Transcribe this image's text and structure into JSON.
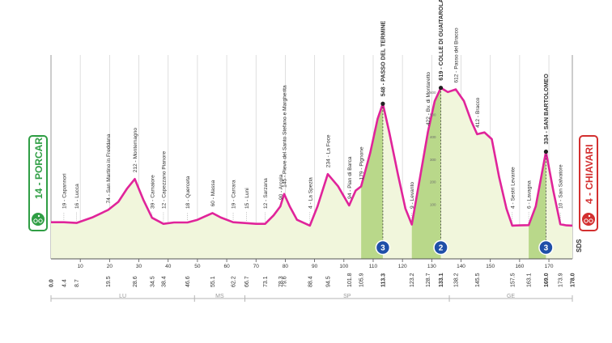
{
  "start": {
    "label": "14 - PORCARI"
  },
  "finish": {
    "label": "4 - CHIAVARI"
  },
  "sds": "SDS",
  "colors": {
    "profile_fill": "#f1f6dc",
    "climb_fill": "#b9d88a",
    "profile_line": "#e0249a",
    "start_green": "#2f9e44",
    "finish_red": "#d32f2f",
    "kom_blue": "#1f4fa8"
  },
  "km_ticks": [
    10,
    20,
    30,
    40,
    50,
    60,
    70,
    80,
    90,
    100,
    110,
    120,
    130,
    140,
    150,
    160,
    170
  ],
  "waypoints": [
    {
      "km": 0.0,
      "label": ""
    },
    {
      "km": 4.4,
      "label": "19 - Capannori"
    },
    {
      "km": 8.7,
      "label": "16 - Lucca"
    },
    {
      "km": 19.5,
      "label": "74 - San Martino in Freddana"
    },
    {
      "km": 28.6,
      "label": "212 - Montemagno"
    },
    {
      "km": 34.5,
      "label": "39 - Camaiore"
    },
    {
      "km": 38.4,
      "label": "12 - Capezzano Pianore"
    },
    {
      "km": 46.6,
      "label": "18 - Querceta"
    },
    {
      "km": 55.1,
      "label": "60 - Massa"
    },
    {
      "km": 62.2,
      "label": "19 - Carrara"
    },
    {
      "km": 66.7,
      "label": "15 - Luni"
    },
    {
      "km": 73.1,
      "label": "12 - Sarzana"
    },
    {
      "km": 78.3,
      "label": "90 - Arcola"
    },
    {
      "km": 79.6,
      "label": "145 - Pieve del Santo Stefano e Margherita"
    },
    {
      "km": 88.4,
      "label": "4 - La Spezia"
    },
    {
      "km": 94.5,
      "label": "234 - La Foce"
    },
    {
      "km": 101.8,
      "label": "94 - Pian di Barca"
    },
    {
      "km": 105.9,
      "label": "179 - Pignone"
    },
    {
      "km": 113.3,
      "label": "548 - PASSO DEL TERMINE"
    },
    {
      "km": 123.2,
      "label": "9 - Levanto"
    },
    {
      "km": 128.7,
      "label": "422 - Bv. di Montaretto"
    },
    {
      "km": 133.1,
      "label": "619 - COLLE DI GUAITAROLA"
    },
    {
      "km": 138.2,
      "label": "612 - Passo del Bracco"
    },
    {
      "km": 145.5,
      "label": "412 - Bracco"
    },
    {
      "km": 157.5,
      "label": "4 - Sestri Levante"
    },
    {
      "km": 163.1,
      "label": "6 - Lavagna"
    },
    {
      "km": 169.0,
      "label": "334 - SAN BARTOLOMEO"
    },
    {
      "km": 173.9,
      "label": "10 - San Salvatore"
    },
    {
      "km": 178.0,
      "label": ""
    }
  ],
  "elevation_axis_labels": [
    "100",
    "200",
    "300",
    "400",
    "500",
    "600"
  ],
  "profile": [
    [
      0,
      19
    ],
    [
      4.4,
      19
    ],
    [
      8.7,
      16
    ],
    [
      14,
      40
    ],
    [
      19.5,
      74
    ],
    [
      23,
      110
    ],
    [
      26,
      170
    ],
    [
      28.6,
      212
    ],
    [
      31.5,
      120
    ],
    [
      34.5,
      39
    ],
    [
      38.4,
      12
    ],
    [
      42,
      18
    ],
    [
      46.6,
      18
    ],
    [
      50,
      30
    ],
    [
      55.1,
      60
    ],
    [
      58,
      40
    ],
    [
      62.2,
      19
    ],
    [
      66.7,
      15
    ],
    [
      70,
      12
    ],
    [
      73.1,
      12
    ],
    [
      76,
      50
    ],
    [
      78.3,
      90
    ],
    [
      79.6,
      145
    ],
    [
      81.5,
      90
    ],
    [
      84,
      30
    ],
    [
      88.4,
      4
    ],
    [
      91,
      90
    ],
    [
      94.5,
      234
    ],
    [
      98,
      180
    ],
    [
      101.8,
      94
    ],
    [
      104,
      160
    ],
    [
      105.9,
      179
    ],
    [
      109,
      330
    ],
    [
      111.5,
      480
    ],
    [
      113.3,
      548
    ],
    [
      115.5,
      420
    ],
    [
      118.5,
      230
    ],
    [
      121,
      80
    ],
    [
      123.2,
      9
    ],
    [
      126,
      220
    ],
    [
      128.7,
      422
    ],
    [
      131,
      560
    ],
    [
      133.1,
      619
    ],
    [
      135.5,
      600
    ],
    [
      138.2,
      612
    ],
    [
      141,
      560
    ],
    [
      143.5,
      470
    ],
    [
      145.5,
      412
    ],
    [
      148,
      420
    ],
    [
      150.5,
      390
    ],
    [
      153,
      220
    ],
    [
      155.5,
      80
    ],
    [
      157.5,
      4
    ],
    [
      160,
      5
    ],
    [
      163.1,
      6
    ],
    [
      165.5,
      90
    ],
    [
      167.5,
      230
    ],
    [
      169.0,
      334
    ],
    [
      171.5,
      160
    ],
    [
      173.9,
      10
    ],
    [
      176,
      5
    ],
    [
      178,
      4
    ]
  ],
  "climbs": [
    {
      "from_km": 105.9,
      "to_km": 113.3,
      "category": "3"
    },
    {
      "from_km": 123.2,
      "to_km": 133.1,
      "category": "2"
    },
    {
      "from_km": 163.1,
      "to_km": 169.0,
      "category": "3"
    }
  ],
  "regions": [
    {
      "label": "LU",
      "from_km": 0,
      "to_km": 49
    },
    {
      "label": "MS",
      "from_km": 49,
      "to_km": 66.2
    },
    {
      "label": "SP",
      "from_km": 66.2,
      "to_km": 136
    },
    {
      "label": "GE",
      "from_km": 136,
      "to_km": 178
    }
  ]
}
